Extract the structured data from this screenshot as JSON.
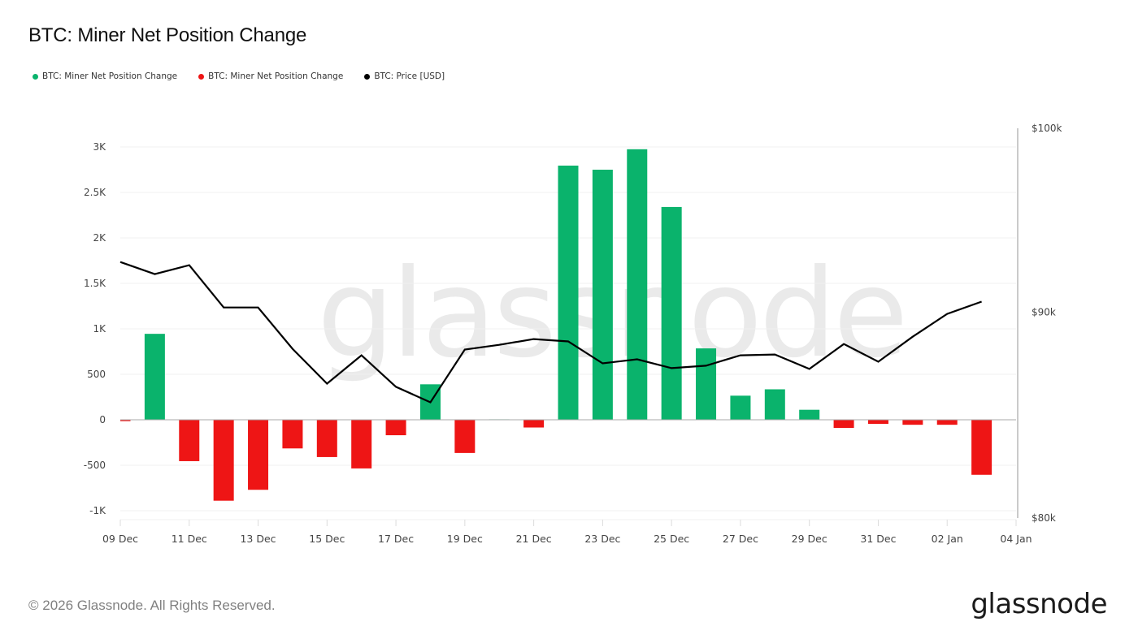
{
  "header": {
    "title": "BTC: Miner Net Position Change"
  },
  "legend": [
    {
      "label": "BTC: Miner Net Position Change",
      "color": "#0ab36c"
    },
    {
      "label": "BTC: Miner Net Position Change",
      "color": "#ee1515"
    },
    {
      "label": "BTC: Price [USD]",
      "color": "#000000"
    }
  ],
  "footer": {
    "copyright": "© 2026 Glassnode. All Rights Reserved.",
    "logo": "glassnode"
  },
  "watermark": "glassnode",
  "colors": {
    "positive": "#0ab36c",
    "negative": "#ee1515",
    "price": "#000000",
    "grid": "#f0f0f0",
    "axis": "#a8a8a8",
    "tick_text": "#444444"
  },
  "chart_data": {
    "type": "bar+line",
    "title": "BTC: Miner Net Position Change",
    "categories": [
      "09 Dec",
      "10 Dec",
      "11 Dec",
      "12 Dec",
      "13 Dec",
      "14 Dec",
      "15 Dec",
      "16 Dec",
      "17 Dec",
      "18 Dec",
      "19 Dec",
      "20 Dec",
      "21 Dec",
      "22 Dec",
      "23 Dec",
      "24 Dec",
      "25 Dec",
      "26 Dec",
      "27 Dec",
      "28 Dec",
      "29 Dec",
      "30 Dec",
      "31 Dec",
      "01 Jan",
      "02 Jan",
      "03 Jan"
    ],
    "series": [
      {
        "name": "BTC: Miner Net Position Change",
        "type": "bar",
        "axis": "left",
        "values": [
          -15,
          945,
          -455,
          -890,
          -770,
          -315,
          -410,
          -535,
          -170,
          390,
          -365,
          5,
          -85,
          2795,
          2750,
          2975,
          2340,
          785,
          265,
          335,
          110,
          -90,
          -45,
          -55,
          -55,
          -605
        ]
      },
      {
        "name": "BTC: Price [USD]",
        "type": "line",
        "axis": "right",
        "values": [
          92630,
          91990,
          92460,
          90250,
          90250,
          88140,
          86400,
          87810,
          86240,
          85480,
          88100,
          88340,
          88630,
          88510,
          87410,
          87610,
          87170,
          87290,
          87810,
          87850,
          87130,
          88380,
          87490,
          88750,
          89920,
          90550
        ]
      }
    ],
    "x_tick_labels": [
      "09 Dec",
      "11 Dec",
      "13 Dec",
      "15 Dec",
      "17 Dec",
      "19 Dec",
      "21 Dec",
      "23 Dec",
      "25 Dec",
      "27 Dec",
      "29 Dec",
      "31 Dec",
      "02 Jan",
      "04 Jan"
    ],
    "y_left": {
      "ticks": [
        3000,
        2500,
        2000,
        1500,
        1000,
        500,
        0,
        -500,
        -1000
      ],
      "tick_labels": [
        "3K",
        "2.5K",
        "2K",
        "1.5K",
        "1K",
        "500",
        "0",
        "-500",
        "-1K"
      ],
      "range": [
        -1100,
        3200
      ]
    },
    "y_right": {
      "scale": "log",
      "ticks": [
        100000,
        90000,
        80000
      ],
      "tick_labels": [
        "$100k",
        "$90k",
        "$80k"
      ],
      "range": [
        80000,
        100000
      ]
    },
    "grid": true,
    "legend_position": "top-left",
    "xlabel": "",
    "ylabel": ""
  }
}
